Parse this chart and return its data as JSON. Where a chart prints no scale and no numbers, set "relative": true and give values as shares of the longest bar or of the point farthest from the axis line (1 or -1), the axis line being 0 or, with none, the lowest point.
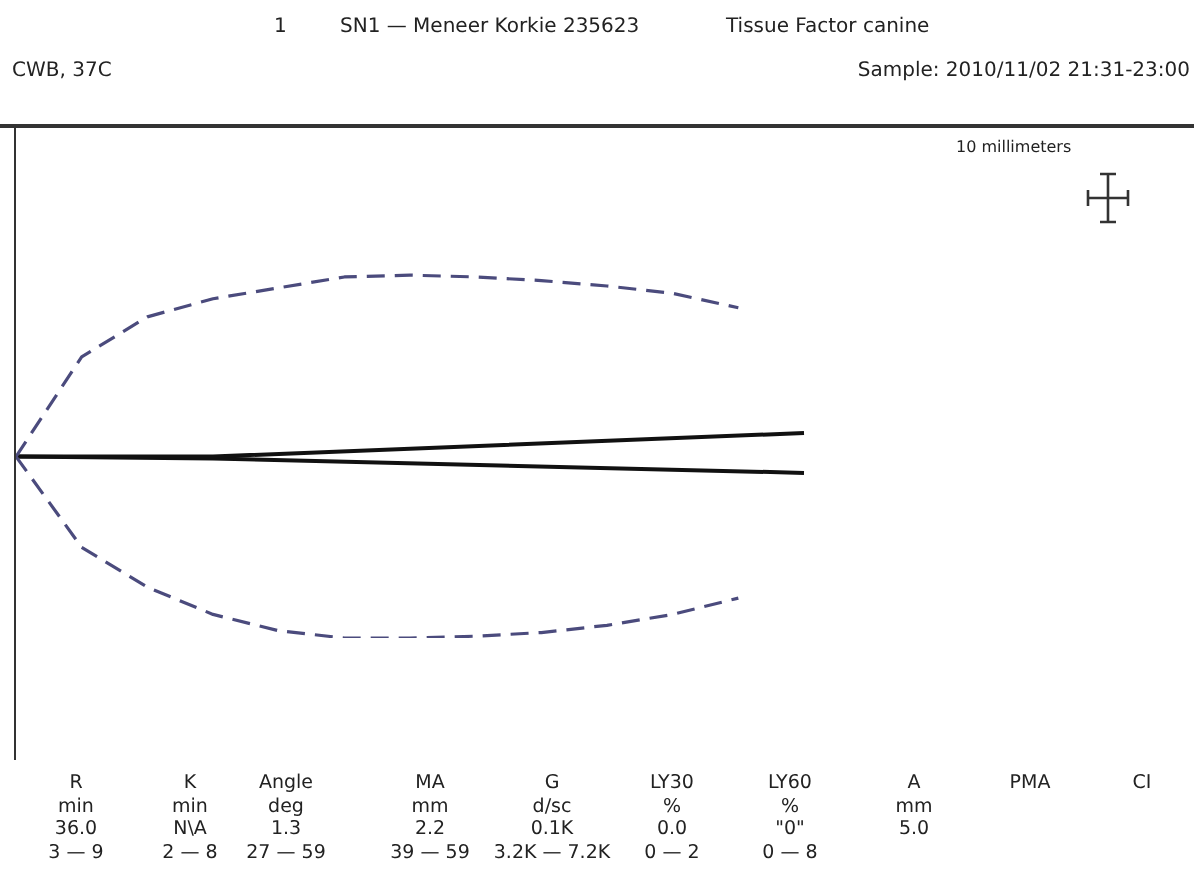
{
  "chart_data": {
    "type": "line",
    "relative": true,
    "marker": "none",
    "legend": false,
    "grid": false,
    "categories": [
      null,
      null,
      null,
      null,
      null,
      null,
      null,
      null,
      null,
      null,
      null,
      null,
      null
    ],
    "series": [
      {
        "color": "#4b4b7d",
        "line_style": "dashed",
        "values": [
          0.5,
          0.775,
          0.885,
          0.935,
          0.965,
          0.995,
          1,
          0.995,
          0.985,
          0.97,
          0.95,
          0.91,
          null
        ]
      },
      {
        "color": "#4b4b7d",
        "line_style": "dashed",
        "values": [
          0.5,
          0.25,
          0.14,
          0.065,
          0.02,
          0,
          0,
          0.005,
          0.015,
          0.035,
          0.065,
          0.11,
          null
        ]
      },
      {
        "color": "#111111",
        "line_style": "solid",
        "values": [
          0.5,
          null,
          null,
          0.5,
          null,
          null,
          null,
          null,
          null,
          null,
          null,
          null,
          0.565
        ]
      },
      {
        "color": "#111111",
        "line_style": "solid",
        "values": [
          0.5,
          null,
          null,
          0.495,
          null,
          null,
          null,
          null,
          null,
          null,
          null,
          null,
          0.455
        ]
      }
    ],
    "annotations": [
      "1",
      "SN1 — Meneer Korkie 235623",
      "Tissue Factor canine",
      "CWB, 37C",
      "Sample: 2010/11/02 21:31-23:00",
      "10 millimeters",
      "R\nmin\n36.0\n3 — 9",
      "K\nmin\nN\\A\n2 — 8",
      "Angle\ndeg\n1.3\n27 — 59",
      "MA\nmm\n2.2\n39 — 59",
      "G\nd/sc\n0.1K\n3.2K — 7.2K",
      "LY30\n%\n0.0\n0 — 2",
      "LY60\n%\n\"0\"\n0 — 8",
      "A\nmm\n5.0",
      "PMA",
      "CI"
    ]
  }
}
